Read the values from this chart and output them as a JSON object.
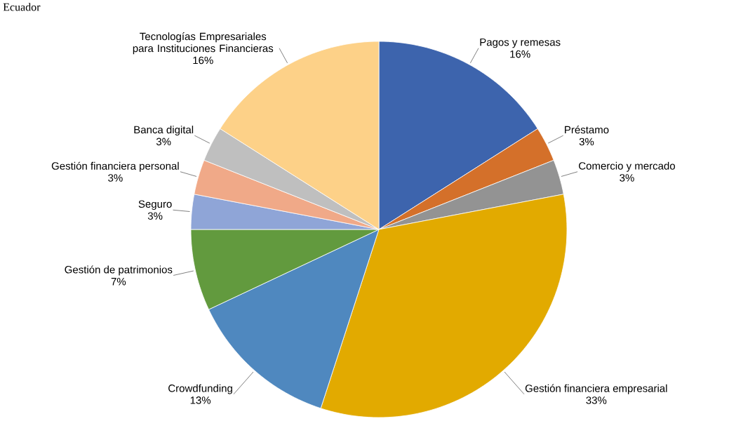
{
  "chart_data": {
    "type": "pie",
    "title": "Ecuador",
    "categories": [
      "Pagos y remesas",
      "Préstamo",
      "Comercio y mercado",
      "Gestión financiera empresarial",
      "Crowdfunding",
      "Gestión de patrimonios",
      "Seguro",
      "Gestión financiera personal",
      "Banca digital",
      "Tecnologías Empresariales para Instituciones Financieras"
    ],
    "values": [
      16,
      3,
      3,
      33,
      13,
      7,
      3,
      3,
      3,
      16
    ],
    "colors": [
      "#3d64ad",
      "#d4702a",
      "#939393",
      "#e2aa00",
      "#4f88bf",
      "#629a3e",
      "#8fa5d7",
      "#f0a988",
      "#bfbfbf",
      "#fdd188"
    ],
    "value_labels": [
      "16%",
      "3%",
      "3%",
      "33%",
      "13%",
      "7%",
      "3%",
      "3%",
      "3%",
      "16%"
    ]
  }
}
